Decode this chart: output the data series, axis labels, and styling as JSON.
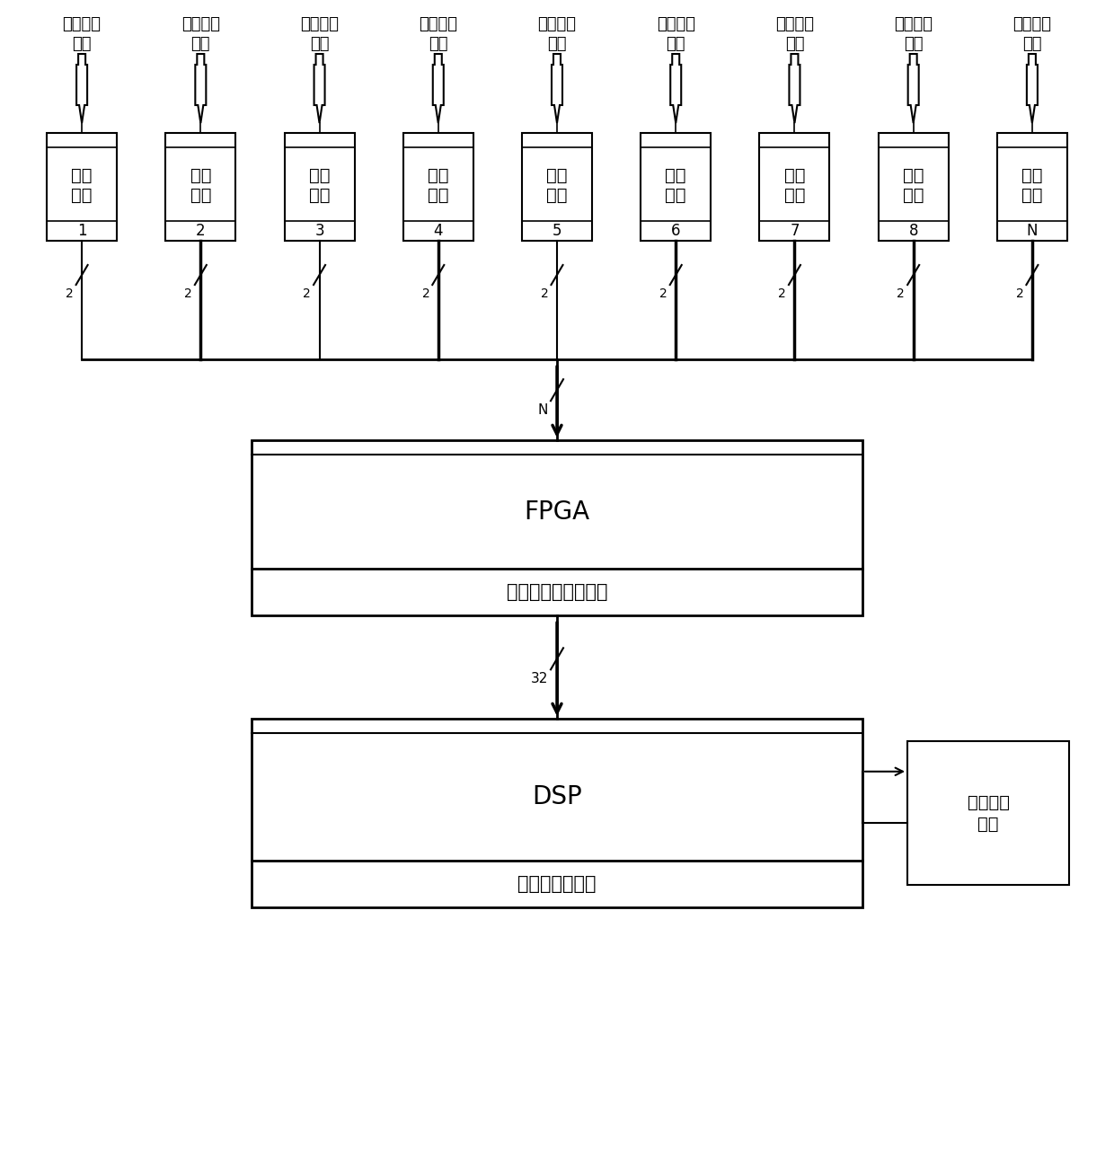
{
  "num_channels": 9,
  "channel_labels": [
    "1",
    "2",
    "3",
    "4",
    "5",
    "6",
    "7",
    "8",
    "N"
  ],
  "input_text_line1": "降螺数据",
  "input_text_line2": "输入",
  "box_text_line1": "数据",
  "box_text_line2": "转换",
  "bus_label": "2",
  "fpga_title": "FPGA",
  "fpga_subtitle": "数据采集与打包分发",
  "n_arrow_label": "N",
  "bit32_label": "32",
  "dsp_title": "DSP",
  "dsp_subtitle": "数据处理与分发",
  "comm_text_line1": "数据通信",
  "comm_text_line2": "模块",
  "bg_color": "#ffffff",
  "line_color": "#000000",
  "text_color": "#000000",
  "fig_width": 12.4,
  "fig_height": 12.79
}
